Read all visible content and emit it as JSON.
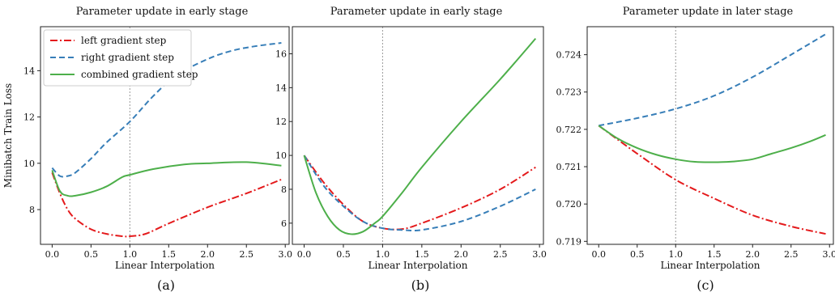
{
  "chart_data": [
    {
      "type": "line",
      "title": "Parameter update in early stage",
      "xlabel": "Linear Interpolation",
      "ylabel": "Minibatch Train Loss",
      "caption": "(a)",
      "xlim": [
        -0.15,
        3.05
      ],
      "ylim": [
        6.5,
        15.9
      ],
      "xticks": [
        0.0,
        0.5,
        1.0,
        1.5,
        2.0,
        2.5,
        3.0
      ],
      "xtick_labels": [
        "0.0",
        "0.5",
        "1.0",
        "1.5",
        "2.0",
        "2.5",
        "3.0"
      ],
      "yticks": [
        8,
        10,
        12,
        14
      ],
      "ytick_labels": [
        "8",
        "10",
        "12",
        "14"
      ],
      "vline": 1.0,
      "legend": "top-left",
      "series": [
        {
          "name": "left gradient step",
          "color": "#e41a1c",
          "dash": "dashdot",
          "x": [
            0.0,
            0.1,
            0.2,
            0.3,
            0.5,
            0.7,
            0.9,
            1.0,
            1.2,
            1.5,
            2.0,
            2.5,
            2.95
          ],
          "y": [
            9.6,
            8.7,
            8.0,
            7.6,
            7.15,
            6.95,
            6.85,
            6.85,
            6.95,
            7.4,
            8.1,
            8.7,
            9.3
          ]
        },
        {
          "name": "right gradient step",
          "color": "#377eb8",
          "dash": "dashed",
          "x": [
            0.0,
            0.1,
            0.2,
            0.3,
            0.5,
            0.7,
            1.0,
            1.3,
            1.6,
            2.0,
            2.3,
            2.6,
            2.95
          ],
          "y": [
            9.8,
            9.45,
            9.45,
            9.6,
            10.2,
            10.9,
            11.8,
            12.9,
            13.8,
            14.5,
            14.85,
            15.05,
            15.2
          ]
        },
        {
          "name": "combined gradient step",
          "color": "#4daf4a",
          "dash": "solid",
          "x": [
            0.0,
            0.1,
            0.2,
            0.3,
            0.5,
            0.7,
            0.9,
            1.0,
            1.3,
            1.7,
            2.0,
            2.5,
            2.95
          ],
          "y": [
            9.7,
            8.8,
            8.6,
            8.6,
            8.75,
            9.0,
            9.4,
            9.5,
            9.75,
            9.95,
            10.0,
            10.05,
            9.9
          ]
        }
      ]
    },
    {
      "type": "line",
      "title": "Parameter update in early stage",
      "xlabel": "Linear Interpolation",
      "ylabel": "",
      "caption": "(b)",
      "xlim": [
        -0.15,
        3.05
      ],
      "ylim": [
        4.75,
        17.6
      ],
      "xticks": [
        0.0,
        0.5,
        1.0,
        1.5,
        2.0,
        2.5,
        3.0
      ],
      "xtick_labels": [
        "0.0",
        "0.5",
        "1.0",
        "1.5",
        "2.0",
        "2.5",
        "3.0"
      ],
      "yticks": [
        6,
        8,
        10,
        12,
        14,
        16
      ],
      "ytick_labels": [
        "6",
        "8",
        "10",
        "12",
        "14",
        "16"
      ],
      "vline": 1.0,
      "series": [
        {
          "color": "#e41a1c",
          "dash": "dashdot",
          "x": [
            0.0,
            0.25,
            0.5,
            0.75,
            1.0,
            1.25,
            1.5,
            2.0,
            2.5,
            2.95
          ],
          "y": [
            10.0,
            8.4,
            7.1,
            6.1,
            5.7,
            5.65,
            6.0,
            6.9,
            8.0,
            9.3
          ]
        },
        {
          "color": "#377eb8",
          "dash": "dashed",
          "x": [
            0.0,
            0.25,
            0.5,
            0.75,
            1.0,
            1.25,
            1.5,
            2.0,
            2.5,
            2.95
          ],
          "y": [
            10.0,
            8.2,
            7.0,
            6.1,
            5.7,
            5.6,
            5.6,
            6.1,
            7.0,
            8.0
          ]
        },
        {
          "color": "#4daf4a",
          "dash": "solid",
          "x": [
            0.0,
            0.15,
            0.3,
            0.45,
            0.6,
            0.75,
            0.9,
            1.0,
            1.25,
            1.5,
            2.0,
            2.5,
            2.95
          ],
          "y": [
            10.0,
            7.8,
            6.4,
            5.6,
            5.35,
            5.5,
            6.0,
            6.4,
            7.8,
            9.3,
            12.0,
            14.5,
            16.9
          ]
        }
      ]
    },
    {
      "type": "line",
      "title": "Parameter update in later stage",
      "xlabel": "Linear Interpolation",
      "ylabel": "",
      "caption": "(c)",
      "xlim": [
        -0.15,
        3.05
      ],
      "ylim": [
        0.71892,
        0.72475
      ],
      "xticks": [
        0.0,
        0.5,
        1.0,
        1.5,
        2.0,
        2.5,
        3.0
      ],
      "xtick_labels": [
        "0.0",
        "0.5",
        "1.0",
        "1.5",
        "2.0",
        "2.5",
        "3.0"
      ],
      "yticks": [
        0.719,
        0.72,
        0.721,
        0.722,
        0.723,
        0.724
      ],
      "ytick_labels": [
        "0.719",
        "0.720",
        "0.721",
        "0.722",
        "0.723",
        "0.724"
      ],
      "vline": 1.0,
      "series": [
        {
          "color": "#e41a1c",
          "dash": "dashdot",
          "x": [
            0.0,
            0.5,
            1.0,
            1.5,
            2.0,
            2.5,
            2.95
          ],
          "y": [
            0.7221,
            0.72135,
            0.72065,
            0.72015,
            0.7197,
            0.7194,
            0.7192
          ]
        },
        {
          "color": "#377eb8",
          "dash": "dashed",
          "x": [
            0.0,
            0.5,
            1.0,
            1.5,
            2.0,
            2.5,
            2.95
          ],
          "y": [
            0.7221,
            0.7223,
            0.72255,
            0.7229,
            0.7234,
            0.724,
            0.72455
          ]
        },
        {
          "color": "#4daf4a",
          "dash": "solid",
          "x": [
            0.0,
            0.25,
            0.5,
            0.75,
            1.0,
            1.25,
            1.5,
            1.75,
            2.0,
            2.25,
            2.5,
            2.75,
            2.95
          ],
          "y": [
            0.7221,
            0.72175,
            0.7215,
            0.72132,
            0.7212,
            0.72113,
            0.72112,
            0.72114,
            0.7212,
            0.72135,
            0.7215,
            0.72168,
            0.72185
          ]
        }
      ]
    }
  ]
}
